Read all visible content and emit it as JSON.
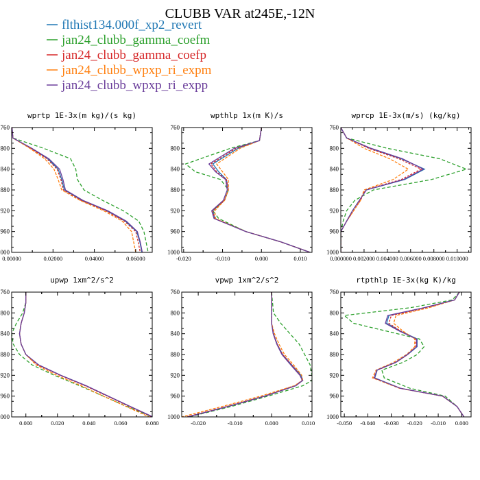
{
  "figure": {
    "title": "CLUBB VAR at245E,-12N"
  },
  "legend": [
    {
      "name": "flthist134.000f_xp2_revert",
      "color": "#1f77b4",
      "dash": ""
    },
    {
      "name": "jan24_clubb_gamma_coefm",
      "color": "#2ca02c",
      "dash": "5,3"
    },
    {
      "name": "jan24_clubb_gamma_coefp",
      "color": "#d62728",
      "dash": "3,2"
    },
    {
      "name": "jan24_clubb_wpxp_ri_expm",
      "color": "#ff7f0e",
      "dash": "4,2"
    },
    {
      "name": "jan24_clubb_wpxp_ri_expp",
      "color": "#6a3d9a",
      "dash": ""
    }
  ],
  "chart_data": [
    {
      "type": "line",
      "title": "wprtp  1E-3x(m kg)/(s kg)",
      "xlim": [
        0.0,
        0.068
      ],
      "ylim": [
        760,
        1000
      ],
      "xticks": [
        "0.00000",
        "0.02000",
        "0.04000",
        "0.06000"
      ],
      "xtick_values": [
        0.0,
        0.02,
        0.04,
        0.06
      ],
      "yticks": [
        760,
        800,
        840,
        880,
        920,
        960,
        1000
      ],
      "y": [
        760,
        780,
        800,
        820,
        840,
        860,
        880,
        900,
        920,
        940,
        960,
        980,
        1000
      ],
      "series": [
        {
          "values": [
            0.0002,
            0.0006,
            0.0095,
            0.0175,
            0.0225,
            0.0242,
            0.0255,
            0.034,
            0.046,
            0.055,
            0.0605,
            0.062,
            0.063
          ]
        },
        {
          "values": [
            0.0002,
            0.0006,
            0.0155,
            0.0285,
            0.031,
            0.0318,
            0.035,
            0.044,
            0.054,
            0.0615,
            0.064,
            0.065,
            0.066
          ]
        },
        {
          "values": [
            0.0002,
            0.0006,
            0.0093,
            0.017,
            0.022,
            0.0238,
            0.025,
            0.0335,
            0.0455,
            0.0545,
            0.06,
            0.0612,
            0.0622
          ]
        },
        {
          "values": [
            0.0002,
            0.0006,
            0.0088,
            0.016,
            0.0205,
            0.0225,
            0.0242,
            0.033,
            0.0445,
            0.0535,
            0.058,
            0.059,
            0.06
          ]
        },
        {
          "values": [
            0.0002,
            0.0006,
            0.0098,
            0.018,
            0.0232,
            0.0248,
            0.026,
            0.0345,
            0.0465,
            0.0555,
            0.0608,
            0.0622,
            0.0632
          ]
        }
      ]
    },
    {
      "type": "line",
      "title": "wpthlp  1x(m K)/s",
      "xlim": [
        -0.0205,
        0.013
      ],
      "ylim": [
        760,
        1000
      ],
      "xticks": [
        "-0.020",
        "-0.010",
        "0.000",
        "0.010"
      ],
      "xtick_values": [
        -0.02,
        -0.01,
        0.0,
        0.01
      ],
      "yticks": [
        760,
        800,
        840,
        880,
        920,
        960,
        1000
      ],
      "y": [
        760,
        785,
        800,
        830,
        845,
        860,
        880,
        900,
        920,
        935,
        960,
        980,
        1000
      ],
      "series": [
        {
          "values": [
            0.0,
            -0.0005,
            -0.006,
            -0.0125,
            -0.011,
            -0.009,
            -0.0085,
            -0.0095,
            -0.0125,
            -0.012,
            -0.004,
            0.005,
            0.0125
          ]
        },
        {
          "values": [
            0.0,
            -0.0005,
            -0.008,
            -0.0195,
            -0.017,
            -0.0105,
            -0.0085,
            -0.0095,
            -0.0125,
            -0.011,
            -0.004,
            0.005,
            0.0125
          ]
        },
        {
          "values": [
            0.0,
            -0.0005,
            -0.0065,
            -0.013,
            -0.0115,
            -0.009,
            -0.0085,
            -0.0095,
            -0.0125,
            -0.012,
            -0.004,
            0.005,
            0.0125
          ]
        },
        {
          "values": [
            0.0,
            -0.0005,
            -0.0055,
            -0.0115,
            -0.01,
            -0.0085,
            -0.0085,
            -0.0095,
            -0.012,
            -0.0118,
            -0.004,
            0.005,
            0.0125
          ]
        },
        {
          "values": [
            0.0,
            -0.0005,
            -0.007,
            -0.0135,
            -0.0118,
            -0.0092,
            -0.0088,
            -0.0098,
            -0.0128,
            -0.0122,
            -0.004,
            0.005,
            0.0125
          ]
        }
      ]
    },
    {
      "type": "line",
      "title": "wprcp  1E-3x(m/s) (kg/kg)",
      "xlim": [
        0.0,
        0.0112
      ],
      "ylim": [
        760,
        1000
      ],
      "xticks": [
        "0.000000",
        "0.002000",
        "0.004000",
        "0.006000",
        "0.008000",
        "0.010000"
      ],
      "xtick_values": [
        0.0,
        0.002,
        0.004,
        0.006,
        0.008,
        0.01
      ],
      "yticks": [
        760,
        800,
        840,
        880,
        920,
        960,
        1000
      ],
      "y": [
        760,
        780,
        800,
        820,
        840,
        860,
        880,
        900,
        920,
        940,
        960,
        1000
      ],
      "series": [
        {
          "values": [
            0.0,
            0.0005,
            0.0025,
            0.0052,
            0.0072,
            0.0055,
            0.0022,
            0.0016,
            0.001,
            0.0005,
            0.0,
            0.0
          ]
        },
        {
          "values": [
            0.0,
            0.0005,
            0.004,
            0.0085,
            0.0108,
            0.0078,
            0.0028,
            0.0012,
            0.0005,
            0.0002,
            0.0,
            0.0
          ]
        },
        {
          "values": [
            0.0,
            0.0005,
            0.0024,
            0.005,
            0.0069,
            0.0052,
            0.0021,
            0.0017,
            0.0011,
            0.0005,
            0.0,
            0.0
          ]
        },
        {
          "values": [
            0.0,
            0.0005,
            0.002,
            0.0042,
            0.0058,
            0.0045,
            0.002,
            0.0017,
            0.0011,
            0.0005,
            0.0,
            0.0
          ]
        },
        {
          "values": [
            0.0,
            0.0005,
            0.0026,
            0.0053,
            0.0071,
            0.0054,
            0.0022,
            0.0016,
            0.001,
            0.0005,
            0.0,
            0.0
          ]
        }
      ]
    },
    {
      "type": "line",
      "title": "upwp  1xm^2/s^2",
      "xlim": [
        -0.009,
        0.08
      ],
      "ylim": [
        760,
        1000
      ],
      "xticks": [
        "0.000",
        "0.020",
        "0.040",
        "0.060",
        "0.080"
      ],
      "xtick_values": [
        0.0,
        0.02,
        0.04,
        0.06,
        0.08
      ],
      "yticks": [
        760,
        800,
        840,
        880,
        920,
        960,
        1000
      ],
      "y": [
        760,
        780,
        800,
        820,
        840,
        860,
        880,
        900,
        920,
        940,
        960,
        980,
        1000
      ],
      "series": [
        {
          "values": [
            0.0,
            0.0,
            -0.001,
            -0.003,
            -0.004,
            -0.003,
            0.0,
            0.008,
            0.022,
            0.038,
            0.052,
            0.066,
            0.08
          ]
        },
        {
          "values": [
            0.0,
            0.0,
            -0.002,
            -0.006,
            -0.009,
            -0.008,
            -0.004,
            0.004,
            0.018,
            0.034,
            0.049,
            0.064,
            0.08
          ]
        },
        {
          "values": [
            0.0,
            0.0,
            -0.001,
            -0.003,
            -0.004,
            -0.003,
            0.0,
            0.0075,
            0.0215,
            0.0375,
            0.0515,
            0.0655,
            0.08
          ]
        },
        {
          "values": [
            0.0,
            0.0,
            -0.001,
            -0.003,
            -0.004,
            -0.003,
            0.0,
            0.0065,
            0.0195,
            0.035,
            0.049,
            0.0635,
            0.078
          ]
        },
        {
          "values": [
            0.0,
            0.0,
            -0.001,
            -0.003,
            -0.004,
            -0.003,
            0.0,
            0.0082,
            0.0222,
            0.0382,
            0.0522,
            0.0662,
            0.0805
          ]
        }
      ]
    },
    {
      "type": "line",
      "title": "vpwp  1xm^2/s^2",
      "xlim": [
        -0.0245,
        0.011
      ],
      "ylim": [
        760,
        1000
      ],
      "xticks": [
        "-0.020",
        "-0.010",
        "0.000",
        "0.010"
      ],
      "xtick_values": [
        -0.02,
        -0.01,
        0.0,
        0.01
      ],
      "yticks": [
        760,
        800,
        840,
        880,
        920,
        960,
        1000
      ],
      "y": [
        760,
        800,
        820,
        840,
        860,
        880,
        900,
        920,
        930,
        940,
        960,
        980,
        1000
      ],
      "series": [
        {
          "values": [
            0.0,
            0.0,
            0.0,
            0.0005,
            0.0015,
            0.003,
            0.0055,
            0.008,
            0.0085,
            0.0065,
            -0.002,
            -0.012,
            -0.023
          ]
        },
        {
          "values": [
            0.0,
            0.0005,
            0.0025,
            0.005,
            0.0075,
            0.009,
            0.0105,
            0.011,
            0.011,
            0.0085,
            -0.001,
            -0.011,
            -0.0225
          ]
        },
        {
          "values": [
            0.0,
            0.0,
            0.0,
            0.0005,
            0.0015,
            0.003,
            0.0055,
            0.0078,
            0.0083,
            0.0063,
            -0.002,
            -0.0122,
            -0.0232
          ]
        },
        {
          "values": [
            0.0,
            0.0,
            0.0,
            0.0008,
            0.002,
            0.0035,
            0.006,
            0.0082,
            0.0085,
            0.0062,
            -0.003,
            -0.0135,
            -0.0245
          ]
        },
        {
          "values": [
            0.0,
            0.0,
            0.0,
            0.0004,
            0.0014,
            0.0028,
            0.0052,
            0.0077,
            0.0084,
            0.0066,
            -0.0018,
            -0.0118,
            -0.0228
          ]
        }
      ]
    },
    {
      "type": "line",
      "title": "rtpthlp  1E-3x(kg K)/kg",
      "xlim": [
        -0.0515,
        0.004
      ],
      "ylim": [
        760,
        1000
      ],
      "xticks": [
        "-0.050",
        "-0.040",
        "-0.030",
        "-0.020",
        "-0.010",
        "0.000"
      ],
      "xtick_values": [
        -0.05,
        -0.04,
        -0.03,
        -0.02,
        -0.01,
        0.0
      ],
      "yticks": [
        760,
        800,
        840,
        880,
        920,
        960,
        1000
      ],
      "y": [
        760,
        775,
        790,
        805,
        820,
        835,
        850,
        865,
        880,
        895,
        910,
        925,
        945,
        960,
        980,
        1000
      ],
      "series": [
        {
          "values": [
            -0.001,
            -0.003,
            -0.016,
            -0.031,
            -0.032,
            -0.026,
            -0.019,
            -0.019,
            -0.023,
            -0.028,
            -0.036,
            -0.037,
            -0.026,
            -0.008,
            -0.002,
            0.001
          ]
        },
        {
          "values": [
            -0.001,
            -0.004,
            -0.022,
            -0.05,
            -0.046,
            -0.032,
            -0.018,
            -0.016,
            -0.019,
            -0.025,
            -0.034,
            -0.033,
            -0.022,
            -0.007,
            -0.002,
            0.001
          ]
        },
        {
          "values": [
            -0.001,
            -0.003,
            -0.015,
            -0.03,
            -0.031,
            -0.026,
            -0.0195,
            -0.0195,
            -0.023,
            -0.028,
            -0.036,
            -0.0375,
            -0.026,
            -0.008,
            -0.002,
            0.001
          ]
        },
        {
          "values": [
            -0.001,
            -0.003,
            -0.014,
            -0.028,
            -0.029,
            -0.025,
            -0.02,
            -0.02,
            -0.0235,
            -0.029,
            -0.0365,
            -0.038,
            -0.0265,
            -0.0082,
            -0.002,
            0.001
          ]
        },
        {
          "values": [
            -0.001,
            -0.003,
            -0.016,
            -0.0315,
            -0.0325,
            -0.0265,
            -0.0192,
            -0.0192,
            -0.0232,
            -0.0282,
            -0.0362,
            -0.0372,
            -0.0262,
            -0.0081,
            -0.002,
            0.001
          ]
        }
      ]
    }
  ]
}
